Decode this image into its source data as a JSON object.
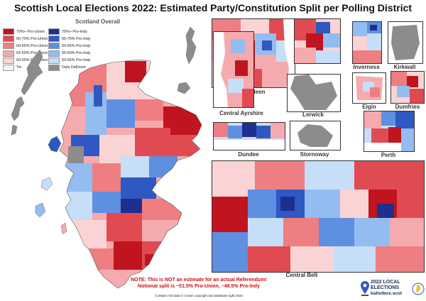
{
  "title": "Scottish Local Elections 2022: Estimated Party/Constitution Split per Polling District",
  "overall_label": "Scotland Overall",
  "legend": {
    "left": [
      {
        "label": "70%+ Pro-Union",
        "color": "#c0141e"
      },
      {
        "label": "65-70% Pro-Union",
        "color": "#e04b52"
      },
      {
        "label": "60-65% Pro-Union",
        "color": "#ee7e82"
      },
      {
        "label": "55-60% Pro-Union",
        "color": "#f5abad"
      },
      {
        "label": "50-55% Pro-Union",
        "color": "#fad4d5"
      },
      {
        "label": "Tie",
        "color": "#f4f4f4"
      }
    ],
    "right": [
      {
        "label": "70%+ Pro-Indy",
        "color": "#1d2f8f"
      },
      {
        "label": "65-70% Pro-Indy",
        "color": "#2f58c2"
      },
      {
        "label": "60-65% Pro-Indy",
        "color": "#5e8fe0"
      },
      {
        "label": "55-60% Pro-Indy",
        "color": "#93bdf0"
      },
      {
        "label": "50-55% Pro-Indy",
        "color": "#c7def8"
      },
      {
        "label": "Data Deficient",
        "color": "#8c8c8c"
      }
    ]
  },
  "insets": {
    "aberdeen": "Aberdeen",
    "inverness": "Inverness",
    "kirkwall": "Kirkwall",
    "central_ayrshire": "Central Ayrshire",
    "lerwick": "Lerwick",
    "elgin": "Elgin",
    "dumfries": "Dumfries",
    "dundee": "Dundee",
    "stornoway": "Stornoway",
    "perth": "Perth",
    "central_belt": "Central Belt"
  },
  "note": {
    "line1": "NOTE: This is NOT an estimate for an actual Referendum!",
    "line2": "Notional split is ~51.5% Pro-Union, ~48.5% Pro-Indy"
  },
  "credit": "Contains OS data © Crown copyright and database right 2022",
  "brand": {
    "line1": "2022 LOCAL",
    "line2": "ELECTIONS",
    "url": "ballotbox.scot",
    "icon": "ballot-pin-icon"
  }
}
